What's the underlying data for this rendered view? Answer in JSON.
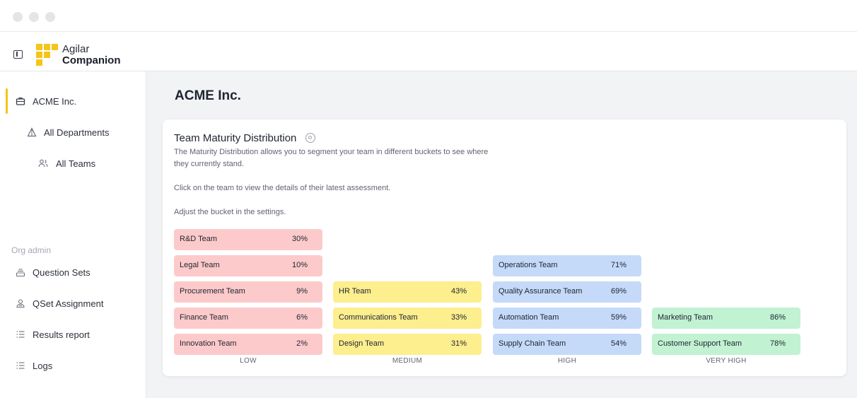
{
  "header": {
    "brand_line1": "Agilar",
    "brand_line2": "Companion",
    "colors": {
      "brand_accent": "#f5c518"
    }
  },
  "sidebar": {
    "items": [
      {
        "label": "ACME Inc.",
        "icon": "briefcase-icon",
        "active": true
      },
      {
        "label": "All Departments",
        "icon": "departments-icon"
      },
      {
        "label": "All Teams",
        "icon": "users-icon"
      }
    ],
    "section_label": "Org admin",
    "admin_items": [
      {
        "label": "Question Sets",
        "icon": "stack-icon"
      },
      {
        "label": "QSet Assignment",
        "icon": "assign-icon"
      },
      {
        "label": "Results report",
        "icon": "list-icon"
      },
      {
        "label": "Logs",
        "icon": "list-icon"
      }
    ]
  },
  "main": {
    "page_title": "ACME Inc.",
    "card": {
      "title": "Team Maturity Distribution",
      "desc_line1": "The Maturity Distribution allows you to segment your team in different buckets to see where",
      "desc_line2": "they currently stand.",
      "desc_click": "Click on the team to view the details of their latest assessment.",
      "desc_adjust": "Adjust the bucket in the settings.",
      "buckets": [
        {
          "label": "LOW",
          "color": "#fccaca",
          "teams": [
            {
              "name": "R&D Team",
              "pct": "30%"
            },
            {
              "name": "Legal Team",
              "pct": "10%"
            },
            {
              "name": "Procurement Team",
              "pct": "9%"
            },
            {
              "name": "Finance Team",
              "pct": "6%"
            },
            {
              "name": "Innovation Team",
              "pct": "2%"
            }
          ]
        },
        {
          "label": "MEDIUM",
          "color": "#fdee8e",
          "teams": [
            {
              "name": "HR Team",
              "pct": "43%"
            },
            {
              "name": "Communications Team",
              "pct": "33%"
            },
            {
              "name": "Design Team",
              "pct": "31%"
            }
          ]
        },
        {
          "label": "HIGH",
          "color": "#c5daf9",
          "teams": [
            {
              "name": "Operations Team",
              "pct": "71%"
            },
            {
              "name": "Quality Assurance Team",
              "pct": "69%"
            },
            {
              "name": "Automation Team",
              "pct": "59%"
            },
            {
              "name": "Supply Chain Team",
              "pct": "54%"
            }
          ]
        },
        {
          "label": "VERY HIGH",
          "color": "#c1f2d2",
          "teams": [
            {
              "name": "Marketing Team",
              "pct": "86%"
            },
            {
              "name": "Customer Support Team",
              "pct": "78%"
            }
          ]
        }
      ]
    }
  }
}
